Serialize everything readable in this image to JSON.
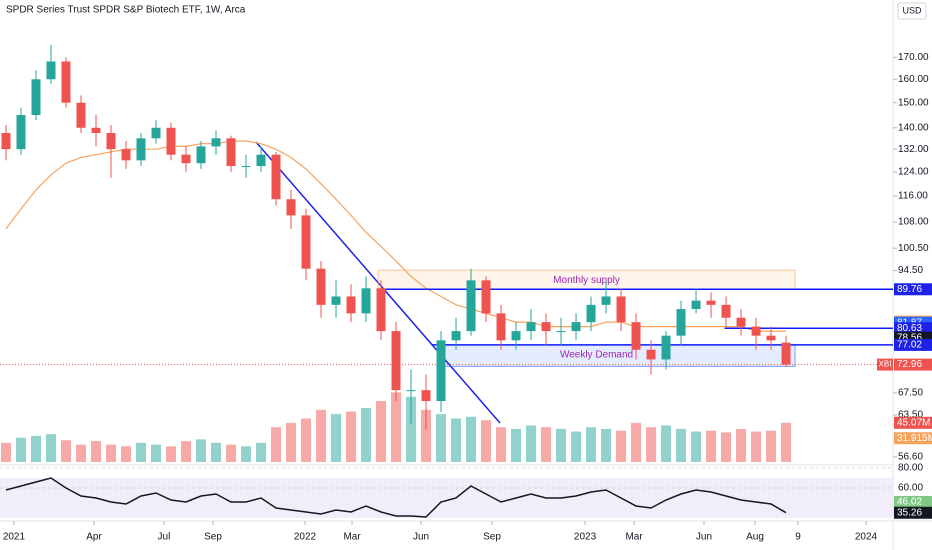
{
  "chart_data": {
    "type": "candlestick",
    "title": "SPDR Series Trust SPDR S&P Biotech ETF, 1W, Arca",
    "currency": "USD",
    "symbol": "XBI",
    "log_scale": true,
    "up_color": "#26a69a",
    "down_color": "#ef5350",
    "xlim": [
      -0.4,
      59.13
    ],
    "xticks": [
      {
        "value": 0.53,
        "label": "2021"
      },
      {
        "value": 5.87,
        "label": "Apr"
      },
      {
        "value": 10.53,
        "label": "Jul"
      },
      {
        "value": 13.8,
        "label": "Sep"
      },
      {
        "value": 19.93,
        "label": "2022"
      },
      {
        "value": 23.07,
        "label": "Mar"
      },
      {
        "value": 27.67,
        "label": "Jun"
      },
      {
        "value": 32.4,
        "label": "Sep"
      },
      {
        "value": 38.6,
        "label": "2023"
      },
      {
        "value": 41.87,
        "label": "Mar"
      },
      {
        "value": 46.53,
        "label": "Jun"
      },
      {
        "value": 49.93,
        "label": "Aug"
      },
      {
        "value": 52.8,
        "label": "9"
      },
      {
        "value": 57.33,
        "label": "2024"
      }
    ],
    "ylim": [
      55.8,
      199
    ],
    "yticks": [
      {
        "value": 170,
        "label": "170.00"
      },
      {
        "value": 160,
        "label": "160.00"
      },
      {
        "value": 150,
        "label": "150.00"
      },
      {
        "value": 140,
        "label": "140.00"
      },
      {
        "value": 132,
        "label": "132.00"
      },
      {
        "value": 124,
        "label": "124.00"
      },
      {
        "value": 116,
        "label": "116.00"
      },
      {
        "value": 108,
        "label": "108.00"
      },
      {
        "value": 100.5,
        "label": "100.50"
      },
      {
        "value": 94.5,
        "label": "94.50"
      },
      {
        "value": 67.5,
        "label": "67.50"
      },
      {
        "value": 63.5,
        "label": "63.50"
      },
      {
        "value": 56.6,
        "label": "56.60"
      }
    ],
    "open": [
      138,
      132,
      145,
      160,
      168,
      150,
      140,
      138,
      132,
      128,
      136,
      140,
      130,
      127,
      133,
      136,
      126,
      126,
      130,
      115,
      110,
      95,
      86,
      88,
      84,
      90,
      80,
      68,
      68,
      66,
      78,
      80,
      92,
      84,
      78,
      80,
      82,
      80,
      80,
      82,
      86,
      88,
      82,
      76,
      74,
      79,
      85,
      87,
      86,
      83,
      81,
      79,
      77.5
    ],
    "high": [
      141,
      148,
      164,
      176,
      170,
      153,
      145,
      141,
      135,
      138,
      143,
      142,
      133,
      135,
      139,
      137,
      130,
      133,
      131,
      118,
      112,
      97,
      92,
      91,
      93,
      92,
      82,
      72,
      71,
      80,
      83,
      95,
      93,
      86,
      82,
      85,
      84,
      83,
      84,
      88,
      92,
      90,
      84,
      78,
      80,
      87,
      90,
      89,
      88,
      85,
      83,
      81,
      79
    ],
    "low": [
      128,
      130,
      143,
      158,
      148,
      138,
      133,
      122,
      125,
      126,
      134,
      128,
      124,
      125,
      130,
      124,
      122,
      124,
      113,
      106,
      92,
      83,
      83,
      82,
      82,
      78,
      66,
      62,
      61,
      64,
      76,
      79,
      82,
      76,
      76,
      78,
      77,
      77,
      78,
      80,
      84,
      80,
      74,
      71,
      72,
      77,
      84,
      83,
      81,
      79,
      76,
      76,
      72.5
    ],
    "close": [
      132,
      145,
      160,
      168,
      150,
      140,
      138,
      132,
      128,
      136,
      140,
      130,
      127,
      133,
      136,
      126,
      126,
      130,
      115,
      110,
      95,
      86,
      88,
      84,
      90,
      80,
      68,
      68,
      66,
      78,
      80,
      92,
      84,
      78,
      80,
      82,
      80,
      80,
      82,
      86,
      88,
      82,
      76,
      74,
      79,
      85,
      87,
      86,
      83,
      81,
      79,
      78,
      72.96
    ],
    "ma": {
      "color": "#f7a35c",
      "values": [
        106,
        112,
        118,
        123,
        127,
        129,
        130,
        131,
        132,
        132,
        132,
        133,
        133,
        134,
        134,
        135,
        135,
        134,
        132,
        129,
        125,
        120,
        115,
        110,
        105,
        101,
        97,
        93,
        90,
        88,
        86,
        85,
        84,
        83,
        82,
        82,
        81,
        81,
        81,
        81,
        82,
        82,
        81,
        81,
        81,
        81,
        81,
        81,
        81,
        81,
        80,
        80,
        80
      ]
    },
    "zones": [
      {
        "label": "Monthly supply",
        "top": 94.6,
        "bottom": 89.76,
        "color": "#f7a35c"
      },
      {
        "label": "Weekly Demand",
        "top": 77.02,
        "bottom": 72.6,
        "color": "#2962ff"
      }
    ],
    "levels_color": "#0d1cff",
    "price_tags": [
      {
        "value": 89.76,
        "color": "#1e22e6",
        "level": true
      },
      {
        "value": 82.11,
        "color": "#f7a35c"
      },
      {
        "value": 81.87,
        "color": "#2962ff"
      },
      {
        "value": 80.63,
        "color": "#1e22e6",
        "level": true
      },
      {
        "value": 78.56,
        "color": "#131722"
      },
      {
        "value": 77.02,
        "color": "#1e22e6",
        "level": true
      },
      {
        "value": 72.96,
        "color": "#ef5350",
        "last": true
      }
    ],
    "volume": {
      "values": [
        22,
        28,
        30,
        32,
        25,
        20,
        24,
        20,
        18,
        22,
        20,
        18,
        24,
        26,
        22,
        20,
        18,
        22,
        40,
        45,
        50,
        60,
        55,
        58,
        62,
        70,
        80,
        75,
        60,
        55,
        50,
        52,
        48,
        40,
        38,
        42,
        40,
        38,
        35,
        40,
        38,
        36,
        45,
        40,
        42,
        38,
        35,
        36,
        34,
        38,
        35,
        36,
        45.07
      ],
      "ylim": [
        0,
        100
      ],
      "tags": [
        {
          "value": 45.07,
          "label": "45.07M",
          "color": "#ef5350"
        },
        {
          "value": 31.915,
          "label": "31.915M",
          "color": "#f7a35c"
        }
      ]
    },
    "rsi": {
      "color": "#131722",
      "ylim": [
        30,
        86
      ],
      "yticks": [
        {
          "value": 80,
          "label": "80.00"
        },
        {
          "value": 60,
          "label": "60.00"
        }
      ],
      "values": [
        58,
        62,
        66,
        70,
        60,
        52,
        50,
        46,
        44,
        52,
        55,
        48,
        46,
        52,
        54,
        46,
        46,
        50,
        40,
        38,
        36,
        34,
        38,
        36,
        42,
        36,
        32,
        32,
        31,
        46,
        50,
        62,
        54,
        46,
        50,
        54,
        50,
        50,
        52,
        56,
        58,
        50,
        42,
        40,
        48,
        54,
        58,
        56,
        52,
        48,
        46,
        44,
        35.26
      ],
      "tags": [
        {
          "value": 46.02,
          "color": "#81c784"
        },
        {
          "value": 35.26,
          "color": "#131722"
        }
      ]
    }
  }
}
